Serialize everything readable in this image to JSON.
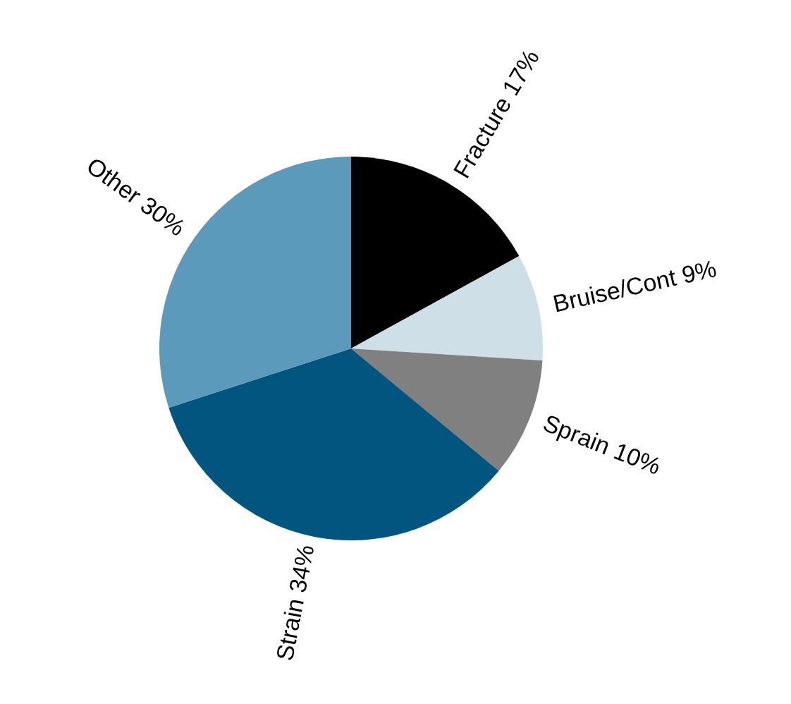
{
  "chart_data": {
    "type": "pie",
    "categories": [
      "Fracture",
      "Bruise/Cont",
      "Sprain",
      "Strain",
      "Other"
    ],
    "values": [
      17,
      9,
      10,
      34,
      30
    ],
    "value_labels": [
      "17%",
      "9%",
      "10%",
      "34%",
      "30%"
    ],
    "colors": [
      "#000000",
      "#cfdfe8",
      "#808080",
      "#02557f",
      "#5b9aba"
    ],
    "legend": false
  }
}
